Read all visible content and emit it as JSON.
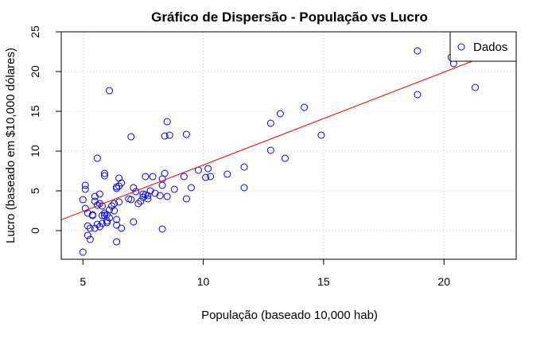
{
  "chart_data": {
    "type": "scatter",
    "title": "Gráfico de Dispersão - População vs Lucro",
    "xlabel": "População (baseado 10,000 hab)",
    "ylabel": "Lucro (baseado em $10,000 dólares)",
    "xlim": [
      4.1,
      23.0
    ],
    "ylim": [
      -3.6,
      25.0
    ],
    "xticks": [
      "5",
      "10",
      "15",
      "20"
    ],
    "xtick_values": [
      5,
      10,
      15,
      20
    ],
    "yticks": [
      "0",
      "5",
      "10",
      "15",
      "20",
      "25"
    ],
    "ytick_values": [
      0,
      5,
      10,
      15,
      20,
      25
    ],
    "grid": true,
    "legend": {
      "position": "top-right",
      "entries": [
        "Dados"
      ]
    },
    "colors": {
      "points": "#0000ff",
      "line": "#ff0000",
      "grid": "#c8c8c8",
      "axis": "#000000"
    },
    "series": [
      {
        "name": "Dados",
        "points": [
          [
            5.0,
            -2.7
          ],
          [
            5.1,
            5.7
          ],
          [
            5.1,
            5.2
          ],
          [
            5.0,
            3.9
          ],
          [
            5.1,
            2.8
          ],
          [
            5.2,
            2.2
          ],
          [
            5.2,
            0.6
          ],
          [
            5.3,
            0.3
          ],
          [
            5.2,
            -0.6
          ],
          [
            5.3,
            -1.1
          ],
          [
            5.4,
            2.0
          ],
          [
            5.4,
            1.9
          ],
          [
            5.5,
            3.7
          ],
          [
            5.5,
            4.3
          ],
          [
            5.6,
            9.1
          ],
          [
            5.6,
            3.2
          ],
          [
            5.7,
            4.6
          ],
          [
            5.7,
            3.4
          ],
          [
            5.8,
            3.1
          ],
          [
            5.8,
            1.9
          ],
          [
            5.9,
            1.9
          ],
          [
            5.6,
            0.8
          ],
          [
            5.7,
            0.5
          ],
          [
            5.5,
            0.3
          ],
          [
            5.8,
            0.9
          ],
          [
            5.9,
            2.2
          ],
          [
            6.0,
            1.2
          ],
          [
            6.0,
            2.0
          ],
          [
            5.9,
            6.9
          ],
          [
            5.9,
            7.2
          ],
          [
            6.0,
            1.0
          ],
          [
            6.1,
            1.6
          ],
          [
            6.1,
            2.6
          ],
          [
            6.2,
            3.1
          ],
          [
            6.3,
            3.4
          ],
          [
            6.3,
            2.5
          ],
          [
            6.4,
            1.4
          ],
          [
            6.4,
            0.7
          ],
          [
            6.4,
            -1.4
          ],
          [
            6.4,
            5.3
          ],
          [
            6.4,
            5.5
          ],
          [
            6.5,
            3.6
          ],
          [
            6.5,
            6.6
          ],
          [
            6.5,
            5.6
          ],
          [
            6.6,
            6.0
          ],
          [
            6.6,
            0.3
          ],
          [
            6.1,
            17.6
          ],
          [
            7.0,
            11.8
          ],
          [
            6.9,
            4.0
          ],
          [
            7.0,
            3.9
          ],
          [
            7.1,
            5.4
          ],
          [
            7.1,
            1.1
          ],
          [
            7.2,
            4.9
          ],
          [
            7.3,
            3.4
          ],
          [
            7.4,
            3.7
          ],
          [
            7.5,
            4.2
          ],
          [
            7.5,
            4.6
          ],
          [
            7.6,
            4.5
          ],
          [
            7.6,
            6.8
          ],
          [
            7.7,
            4.0
          ],
          [
            7.7,
            4.4
          ],
          [
            7.8,
            5.0
          ],
          [
            7.9,
            6.8
          ],
          [
            8.0,
            4.7
          ],
          [
            8.2,
            4.4
          ],
          [
            8.3,
            5.7
          ],
          [
            8.3,
            6.5
          ],
          [
            8.4,
            7.2
          ],
          [
            8.4,
            11.9
          ],
          [
            8.5,
            13.7
          ],
          [
            8.5,
            4.3
          ],
          [
            8.6,
            12.0
          ],
          [
            8.3,
            0.2
          ],
          [
            8.8,
            5.2
          ],
          [
            9.2,
            6.8
          ],
          [
            9.3,
            12.1
          ],
          [
            9.3,
            4.0
          ],
          [
            9.5,
            5.4
          ],
          [
            9.8,
            7.6
          ],
          [
            10.1,
            6.7
          ],
          [
            10.2,
            7.8
          ],
          [
            10.3,
            6.8
          ],
          [
            11.0,
            7.1
          ],
          [
            11.7,
            8.0
          ],
          [
            11.7,
            5.4
          ],
          [
            12.8,
            13.5
          ],
          [
            12.8,
            10.1
          ],
          [
            13.2,
            14.7
          ],
          [
            13.4,
            9.1
          ],
          [
            14.2,
            15.5
          ],
          [
            14.9,
            12.0
          ],
          [
            18.9,
            22.6
          ],
          [
            18.9,
            17.1
          ],
          [
            20.3,
            21.8
          ],
          [
            20.4,
            21.0
          ],
          [
            21.3,
            18.0
          ]
        ]
      }
    ],
    "regression_line": {
      "x": [
        4.1,
        23.0
      ],
      "y": [
        1.37,
        23.43
      ]
    }
  }
}
